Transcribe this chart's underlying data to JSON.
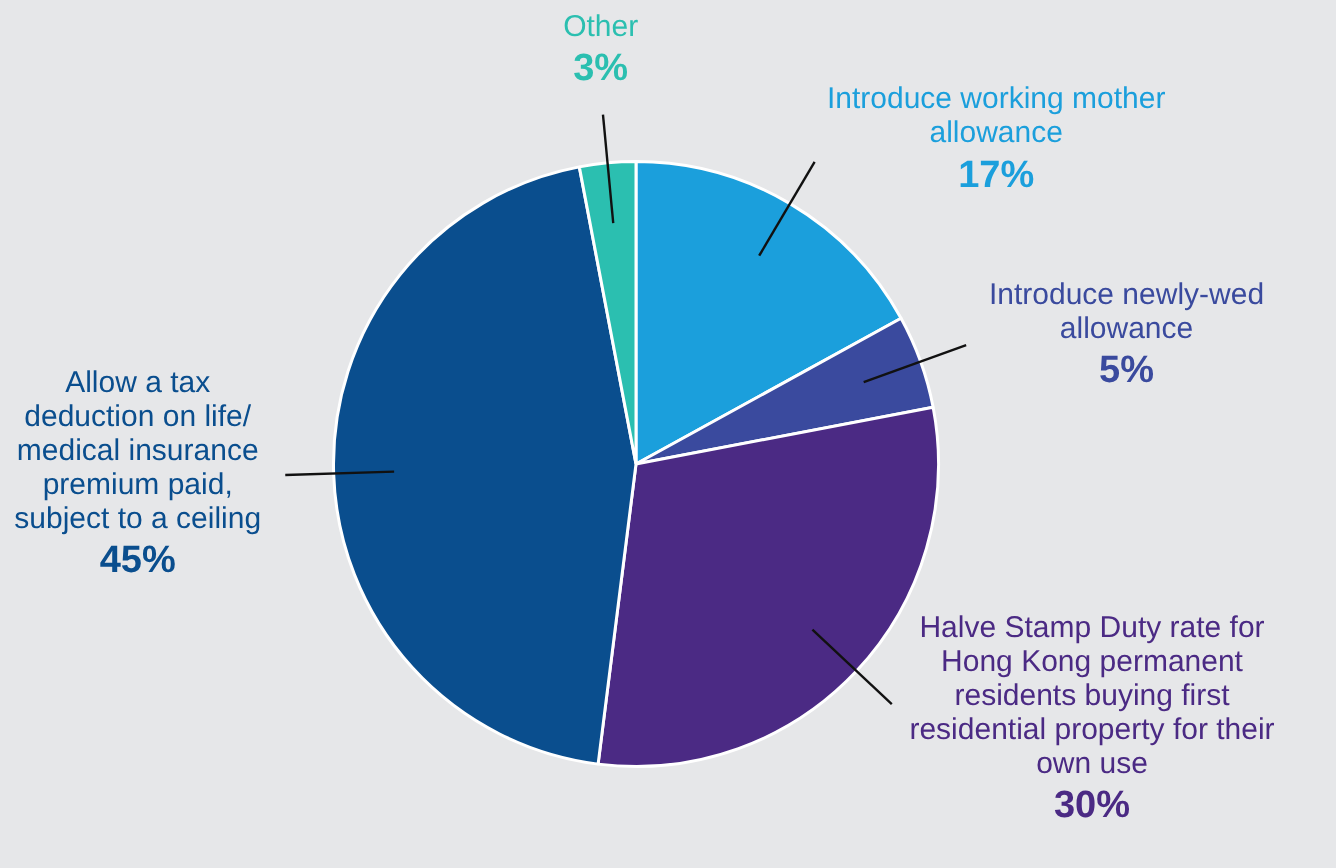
{
  "chart_data": {
    "type": "pie",
    "categories": [
      "Introduce working mother allowance",
      "Introduce newly-wed allowance",
      "Halve Stamp Duty rate for Hong Kong permanent residents buying first residential property for their own use",
      "Allow a tax deduction on life/ medical insurance premium paid, subject to a ceiling",
      "Other"
    ],
    "values": [
      17,
      5,
      30,
      45,
      3
    ],
    "value_labels": [
      "17%",
      "5%",
      "30%",
      "45%",
      "3%"
    ],
    "colors": [
      "#1b9fdc",
      "#3a4a9e",
      "#4b2a84",
      "#0a4e8e",
      "#2bbfb0"
    ],
    "legend": false
  }
}
